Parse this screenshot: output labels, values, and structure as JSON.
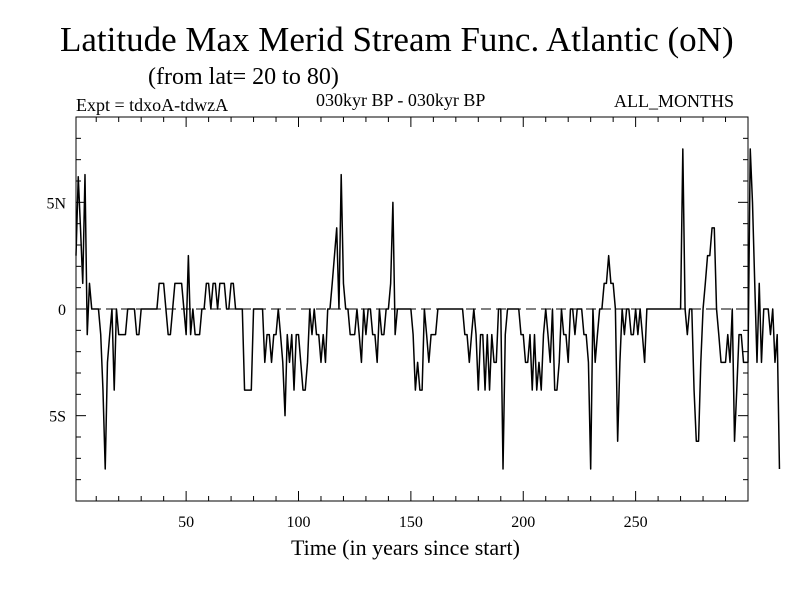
{
  "header": {
    "title": "Latitude Max Merid Stream Func. Atlantic (oN)",
    "subtitle": "(from lat= 20 to 80)",
    "expt": "Expt = tdxoA-tdwzA",
    "period": "030kyr BP - 030kyr BP",
    "months": "ALL_MONTHS"
  },
  "chart_data": {
    "type": "line",
    "title": "Latitude Max Merid Stream Func. Atlantic (oN)",
    "subtitle": "(from lat= 20 to 80)",
    "xlabel": "Time (in years since start)",
    "ylabel": "",
    "xlim": [
      1,
      300
    ],
    "ylim": [
      -9,
      9
    ],
    "x_ticks": [
      50,
      100,
      150,
      200,
      250
    ],
    "y_ticks": [
      {
        "value": 5,
        "label": "5N"
      },
      {
        "value": 0,
        "label": "0"
      },
      {
        "value": -5,
        "label": "5S"
      }
    ],
    "zero_line": "dashed",
    "grid": false,
    "series": [
      {
        "values": [
          2.5,
          6.2,
          3.8,
          1.2,
          6.3,
          -1.2,
          1.2,
          0,
          0,
          0,
          0,
          -1.2,
          -3.8,
          -7.5,
          -2.5,
          -1.2,
          0,
          -3.8,
          0,
          -1.2,
          -1.2,
          -1.2,
          -1.2,
          0,
          0,
          0,
          0,
          -1.2,
          -1.2,
          0,
          0,
          0,
          0,
          0,
          0,
          0,
          0,
          1.2,
          1.2,
          1.2,
          0,
          -1.2,
          -1.2,
          0,
          1.2,
          1.2,
          1.2,
          1.2,
          0,
          -1.2,
          2.5,
          -1.2,
          0,
          -1.2,
          -1.2,
          -1.2,
          0,
          0,
          1.2,
          1.2,
          0,
          1.2,
          1.2,
          0,
          1.2,
          1.2,
          1.2,
          0,
          0,
          1.2,
          1.2,
          0,
          0,
          0,
          0,
          -3.8,
          -3.8,
          -3.8,
          -3.8,
          0,
          0,
          0,
          0,
          0,
          -2.5,
          -1.2,
          -1.2,
          -2.5,
          -1.2,
          -1.2,
          0,
          -1.2,
          -2.5,
          -5.0,
          -1.2,
          -2.5,
          -1.2,
          -3.8,
          -1.2,
          -1.2,
          -2.5,
          -3.8,
          -3.8,
          -2.5,
          0,
          -1.2,
          0,
          -1.2,
          -1.2,
          -2.5,
          -1.2,
          -2.5,
          0,
          0,
          1.2,
          2.5,
          3.8,
          0,
          6.3,
          1.2,
          0,
          0,
          -1.2,
          -1.2,
          -1.2,
          0,
          -1.2,
          -2.5,
          0,
          -1.2,
          0,
          0,
          -1.2,
          -1.2,
          -2.5,
          0,
          -1.2,
          -1.2,
          0,
          0,
          1.2,
          5.0,
          -1.2,
          0,
          0,
          0,
          0,
          0,
          0,
          0,
          -1.2,
          -3.8,
          -2.5,
          -3.8,
          -3.8,
          0,
          -1.2,
          -2.5,
          -1.2,
          -1.2,
          -1.2,
          0,
          0,
          0,
          0,
          0,
          0,
          0,
          0,
          0,
          0,
          0,
          0,
          -1.2,
          -1.2,
          -2.5,
          -1.2,
          0,
          -1.2,
          -3.8,
          -1.2,
          -1.2,
          -3.8,
          -1.2,
          -3.8,
          -1.2,
          -2.5,
          -2.5,
          0,
          0,
          -7.5,
          -1.2,
          0,
          0,
          0,
          0,
          0,
          0,
          -1.2,
          -1.2,
          -2.5,
          -2.5,
          -1.2,
          -3.8,
          -1.2,
          -3.8,
          -2.5,
          -3.8,
          -1.2,
          0,
          -1.2,
          -2.5,
          0,
          -3.8,
          -3.8,
          -2.5,
          0,
          -1.2,
          -1.2,
          -2.5,
          0,
          0,
          -1.2,
          0,
          0,
          0,
          -1.2,
          -1.2,
          -2.5,
          -7.5,
          0,
          -2.5,
          -1.2,
          0,
          0,
          1.2,
          1.2,
          2.5,
          1.2,
          1.2,
          0,
          -6.2,
          -2.5,
          0,
          -1.2,
          0,
          0,
          -1.2,
          -1.2,
          0,
          -1.2,
          0,
          -1.2,
          -2.5,
          0,
          0,
          0,
          0,
          0,
          0,
          0,
          0,
          0,
          0,
          0,
          0,
          0,
          0,
          0,
          0,
          7.5,
          0,
          -1.2,
          0,
          0,
          -3.8,
          -6.2,
          -6.2,
          -2.5,
          0,
          1.2,
          2.5,
          2.5,
          3.8,
          3.8,
          0,
          -1.2,
          -2.5,
          -2.5,
          -2.5,
          -1.2,
          -2.5,
          0,
          -6.2,
          -3.8,
          -1.2,
          -1.2,
          -2.5,
          -2.5,
          -2.5,
          7.5,
          5.0,
          1.2,
          -2.5,
          1.2,
          -2.5,
          0,
          0,
          0,
          -1.2,
          0,
          -2.5,
          -1.2,
          -7.5
        ]
      }
    ]
  }
}
